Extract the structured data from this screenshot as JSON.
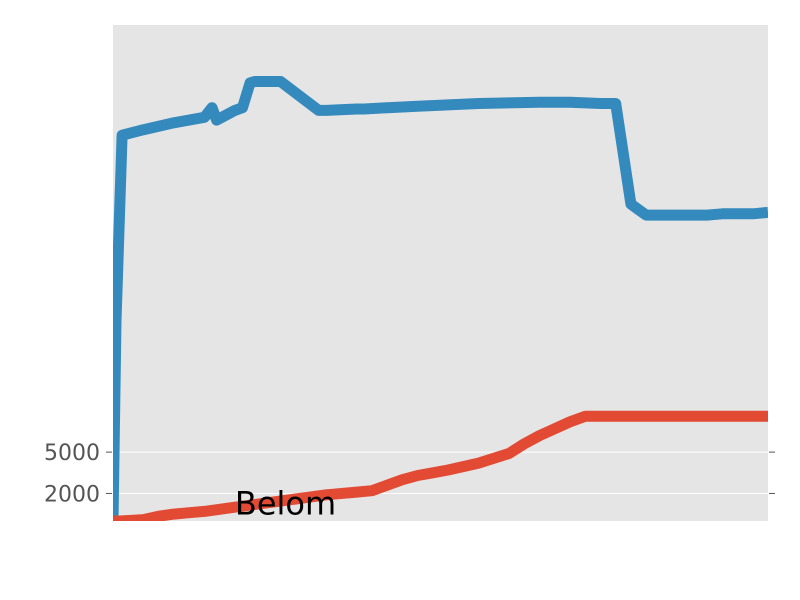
{
  "chart_data": {
    "type": "line",
    "title": "",
    "xlabel": "",
    "ylabel": "",
    "ylim": [
      0,
      36000
    ],
    "yticks": [
      2000,
      5000
    ],
    "grid": true,
    "background_color": "#e5e5e5",
    "annotation": {
      "text": "Belom",
      "x": 8,
      "y": 1200
    },
    "series": [
      {
        "color": "#348abd",
        "x": [
          0,
          0.2,
          0.6,
          2,
          4,
          6,
          6.5,
          6.8,
          8,
          8.5,
          9,
          9.3,
          11,
          13.5,
          14,
          16,
          16.5,
          18,
          20,
          24,
          28,
          30,
          32,
          33,
          34,
          35,
          35.5,
          37,
          39,
          40,
          41,
          42,
          43
        ],
        "y": [
          0,
          14500,
          28000,
          28400,
          28900,
          29300,
          30000,
          29100,
          29800,
          30000,
          31800,
          31900,
          31900,
          29800,
          29800,
          29900,
          29900,
          30000,
          30100,
          30300,
          30400,
          30400,
          30300,
          30300,
          23000,
          22200,
          22200,
          22200,
          22200,
          22300,
          22300,
          22300,
          22400
        ]
      },
      {
        "color": "#e24a33",
        "x": [
          0,
          0.5,
          2,
          3,
          4,
          5,
          6,
          8,
          10,
          12,
          14,
          16,
          17,
          18,
          19,
          20,
          21,
          22,
          24,
          26,
          27,
          28,
          29,
          30,
          31,
          32,
          33,
          34,
          35,
          36,
          37,
          38,
          39,
          40,
          41,
          42,
          43
        ],
        "y": [
          0,
          0,
          100,
          350,
          500,
          600,
          700,
          1000,
          1300,
          1600,
          1900,
          2100,
          2200,
          2600,
          3000,
          3300,
          3500,
          3700,
          4200,
          4900,
          5600,
          6200,
          6700,
          7200,
          7600,
          7600,
          7600,
          7600,
          7600,
          7600,
          7600,
          7600,
          7600,
          7600,
          7600,
          7600,
          7600
        ]
      }
    ]
  }
}
